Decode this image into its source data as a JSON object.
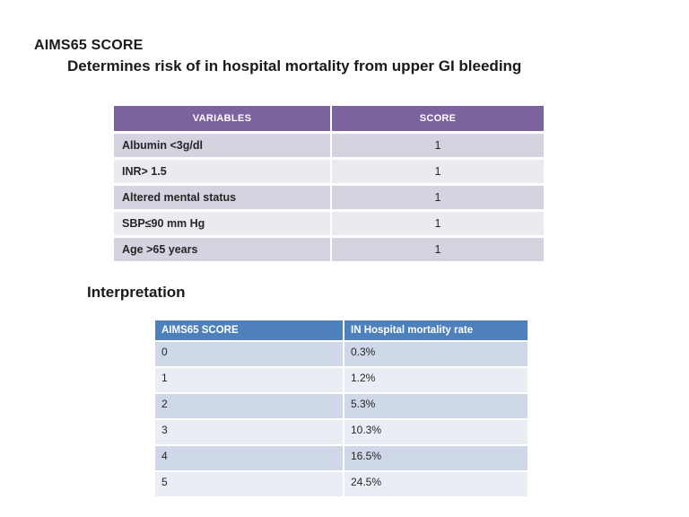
{
  "page": {
    "title": "AIMS65 SCORE",
    "subtitle": "Determines risk of in hospital mortality from upper GI bleeding",
    "interpretation_heading": "Interpretation"
  },
  "colors": {
    "table1_header_bg": "#7B639E",
    "table1_row_dark": "#D7D2E0",
    "table1_row_light": "#ECEAF1",
    "table2_header_bg": "#4E80BC",
    "table2_row_dark": "#CFD8E8",
    "table2_row_light": "#E9EDF4",
    "header_text": "#FFFFFF",
    "body_text": "#262626"
  },
  "score_table": {
    "headers": [
      "VARIABLES",
      "SCORE"
    ],
    "rows": [
      {
        "variable": "Albumin <3g/dl",
        "score": "1"
      },
      {
        "variable": "INR> 1.5",
        "score": "1"
      },
      {
        "variable": "Altered mental status",
        "score": "1"
      },
      {
        "variable": "SBP≤90 mm Hg",
        "score": "1"
      },
      {
        "variable": "Age >65 years",
        "score": "1"
      }
    ]
  },
  "interpretation_table": {
    "headers": [
      "AIMS65 SCORE",
      "IN Hospital mortality rate"
    ],
    "rows": [
      {
        "score": "0",
        "rate": "0.3%"
      },
      {
        "score": "1",
        "rate": "1.2%"
      },
      {
        "score": "2",
        "rate": "5.3%"
      },
      {
        "score": "3",
        "rate": "10.3%"
      },
      {
        "score": "4",
        "rate": "16.5%"
      },
      {
        "score": "5",
        "rate": "24.5%"
      }
    ]
  }
}
